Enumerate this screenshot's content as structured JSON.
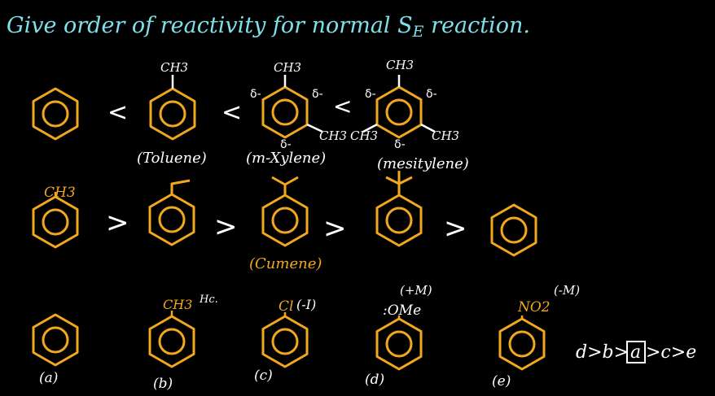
{
  "title": "Give order of reactivity for normal SE reaction.",
  "title_parts": {
    "main": "Give order of reactivity for normal S",
    "sub": "E",
    "tail": " reaction."
  },
  "colors": {
    "background": "#000000",
    "ring": "#f2a81d",
    "white": "#ffffff",
    "title": "#7fe0ea",
    "name": "#f2a81d"
  },
  "row1": {
    "ch3": "CH3",
    "delta": "δ-",
    "lt": "<",
    "names": [
      "(Toluene)",
      "(m-Xylene)",
      "(mesitylene)"
    ]
  },
  "row2": {
    "ch3": "CH3",
    "gt": ">",
    "cumene": "(Cumene)"
  },
  "row3": {
    "labels": [
      "(a)",
      "(b)",
      "(c)",
      "(d)",
      "(e)"
    ],
    "b_sub": "CH3",
    "b_note": "Hc.",
    "c_sub": "Cl",
    "c_effect": "(-I)",
    "d_sub": ":OMe",
    "d_effect": "(+M)",
    "e_sub": "NO2",
    "e_effect": "(-M)",
    "answer_parts": [
      "d>b>",
      "a",
      ">c>e"
    ]
  }
}
